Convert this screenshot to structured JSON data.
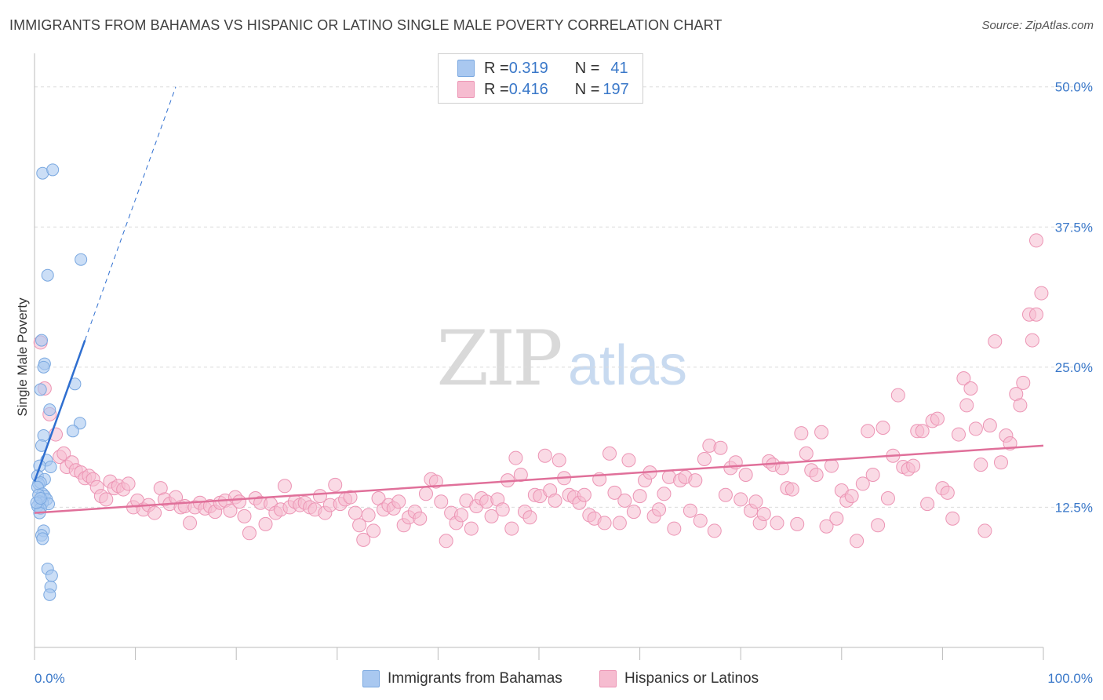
{
  "title": "IMMIGRANTS FROM BAHAMAS VS HISPANIC OR LATINO SINGLE MALE POVERTY CORRELATION CHART",
  "source": "Source: ZipAtlas.com",
  "watermark": {
    "zip": "ZIP",
    "atlas": "atlas"
  },
  "legend": {
    "rows": [
      {
        "r_label": "R = ",
        "r_value": "0.319",
        "n_label": "N = ",
        "n_value": "41"
      },
      {
        "r_label": "R = ",
        "r_value": "0.416",
        "n_label": "N = ",
        "n_value": "197"
      }
    ]
  },
  "chart_data": {
    "type": "scatter",
    "title": "IMMIGRANTS FROM BAHAMAS VS HISPANIC OR LATINO SINGLE MALE POVERTY CORRELATION CHART",
    "xlabel": "",
    "ylabel": "Single Male Poverty",
    "xlim": [
      0,
      100
    ],
    "ylim": [
      0,
      52.5
    ],
    "x_tick_labels": [
      "0.0%",
      "100.0%"
    ],
    "y_ticks": [
      12.5,
      25.0,
      37.5,
      50.0
    ],
    "y_tick_labels": [
      "12.5%",
      "25.0%",
      "37.5%",
      "50.0%"
    ],
    "grid": true,
    "legend_position": "top-center",
    "colors": {
      "blue_fill": "#a9c8f0",
      "blue_stroke": "#7aa8e0",
      "blue_line": "#2f6fd0",
      "pink_fill": "#f6bcd0",
      "pink_stroke": "#ec94b4",
      "pink_line": "#e0709a",
      "tick_text": "#3a78c9",
      "grid": "#dcdcdc"
    },
    "series": [
      {
        "name": "Immigrants from Bahamas",
        "r": 0.319,
        "n": 41,
        "trend": {
          "x": [
            0.0,
            5.0
          ],
          "y": [
            14.8,
            27.4
          ]
        },
        "trend_extended": {
          "x": [
            5.0,
            14.0
          ],
          "y": [
            27.4,
            50.0
          ]
        },
        "points": [
          [
            0.8,
            42.3
          ],
          [
            1.8,
            42.6
          ],
          [
            1.3,
            33.2
          ],
          [
            4.6,
            34.6
          ],
          [
            0.7,
            27.4
          ],
          [
            1.0,
            25.3
          ],
          [
            0.9,
            25.0
          ],
          [
            4.0,
            23.5
          ],
          [
            0.6,
            23.0
          ],
          [
            1.5,
            21.2
          ],
          [
            4.5,
            20.0
          ],
          [
            3.8,
            19.3
          ],
          [
            0.9,
            18.9
          ],
          [
            0.7,
            18.0
          ],
          [
            1.2,
            16.7
          ],
          [
            1.6,
            16.1
          ],
          [
            0.5,
            16.2
          ],
          [
            0.3,
            15.3
          ],
          [
            1.0,
            15.0
          ],
          [
            0.4,
            14.6
          ],
          [
            0.6,
            14.7
          ],
          [
            0.3,
            14.3
          ],
          [
            0.8,
            13.7
          ],
          [
            1.0,
            13.5
          ],
          [
            1.2,
            13.2
          ],
          [
            0.4,
            13.6
          ],
          [
            0.5,
            13.0
          ],
          [
            0.8,
            12.9
          ],
          [
            1.4,
            12.8
          ],
          [
            0.3,
            12.6
          ],
          [
            0.6,
            12.4
          ],
          [
            0.5,
            12.0
          ],
          [
            0.9,
            10.4
          ],
          [
            0.7,
            10.0
          ],
          [
            0.8,
            9.7
          ],
          [
            1.3,
            7.0
          ],
          [
            1.7,
            6.4
          ],
          [
            1.6,
            5.4
          ],
          [
            1.5,
            4.7
          ],
          [
            0.2,
            12.9
          ],
          [
            0.6,
            13.3
          ]
        ]
      },
      {
        "name": "Hispanics or Latinos",
        "r": 0.416,
        "n": 197,
        "trend": {
          "x": [
            0.0,
            100.0
          ],
          "y": [
            12.0,
            18.0
          ]
        },
        "points": [
          [
            0.6,
            27.2
          ],
          [
            1.0,
            23.1
          ],
          [
            1.5,
            20.8
          ],
          [
            2.1,
            19.0
          ],
          [
            2.5,
            17.0
          ],
          [
            2.9,
            17.3
          ],
          [
            3.2,
            16.1
          ],
          [
            3.7,
            16.5
          ],
          [
            4.1,
            15.8
          ],
          [
            4.6,
            15.6
          ],
          [
            5.0,
            15.1
          ],
          [
            5.4,
            15.3
          ],
          [
            5.8,
            15.0
          ],
          [
            6.2,
            14.3
          ],
          [
            6.6,
            13.5
          ],
          [
            7.1,
            13.2
          ],
          [
            7.5,
            14.8
          ],
          [
            7.9,
            14.2
          ],
          [
            8.3,
            14.4
          ],
          [
            8.8,
            14.1
          ],
          [
            9.3,
            14.6
          ],
          [
            9.8,
            12.5
          ],
          [
            10.2,
            13.1
          ],
          [
            10.8,
            12.3
          ],
          [
            11.3,
            12.7
          ],
          [
            11.9,
            12.0
          ],
          [
            12.5,
            14.2
          ],
          [
            12.9,
            13.2
          ],
          [
            13.4,
            12.8
          ],
          [
            14.0,
            13.4
          ],
          [
            14.5,
            12.5
          ],
          [
            14.9,
            12.6
          ],
          [
            15.4,
            11.1
          ],
          [
            15.9,
            12.5
          ],
          [
            16.4,
            12.9
          ],
          [
            16.9,
            12.4
          ],
          [
            17.4,
            12.6
          ],
          [
            17.9,
            12.1
          ],
          [
            18.4,
            12.9
          ],
          [
            18.9,
            13.1
          ],
          [
            19.4,
            12.2
          ],
          [
            19.9,
            13.4
          ],
          [
            20.3,
            13.0
          ],
          [
            20.8,
            11.7
          ],
          [
            21.3,
            10.2
          ],
          [
            21.9,
            13.3
          ],
          [
            22.4,
            12.9
          ],
          [
            22.9,
            11.0
          ],
          [
            23.4,
            12.8
          ],
          [
            23.9,
            12.0
          ],
          [
            24.4,
            12.3
          ],
          [
            24.8,
            14.4
          ],
          [
            25.3,
            12.5
          ],
          [
            25.8,
            13.0
          ],
          [
            26.3,
            12.7
          ],
          [
            26.8,
            12.9
          ],
          [
            27.3,
            12.5
          ],
          [
            27.8,
            12.3
          ],
          [
            28.3,
            13.5
          ],
          [
            28.8,
            12.0
          ],
          [
            29.3,
            12.7
          ],
          [
            29.8,
            14.5
          ],
          [
            30.3,
            12.8
          ],
          [
            30.8,
            13.2
          ],
          [
            31.3,
            13.4
          ],
          [
            31.8,
            12.0
          ],
          [
            32.2,
            10.9
          ],
          [
            32.6,
            9.6
          ],
          [
            33.1,
            11.8
          ],
          [
            33.6,
            10.4
          ],
          [
            34.1,
            13.3
          ],
          [
            34.6,
            12.3
          ],
          [
            35.1,
            12.7
          ],
          [
            35.6,
            12.4
          ],
          [
            36.1,
            13.0
          ],
          [
            36.6,
            10.9
          ],
          [
            37.1,
            11.6
          ],
          [
            37.7,
            12.1
          ],
          [
            38.2,
            11.5
          ],
          [
            38.8,
            13.7
          ],
          [
            39.3,
            15.0
          ],
          [
            39.8,
            14.8
          ],
          [
            40.3,
            13.0
          ],
          [
            40.8,
            9.5
          ],
          [
            41.3,
            12.0
          ],
          [
            41.8,
            11.1
          ],
          [
            42.3,
            11.8
          ],
          [
            42.8,
            13.1
          ],
          [
            43.3,
            10.6
          ],
          [
            43.8,
            12.6
          ],
          [
            44.3,
            13.3
          ],
          [
            44.8,
            13.0
          ],
          [
            45.3,
            11.7
          ],
          [
            45.9,
            13.2
          ],
          [
            46.4,
            12.3
          ],
          [
            46.9,
            14.9
          ],
          [
            47.3,
            10.6
          ],
          [
            47.7,
            16.9
          ],
          [
            48.2,
            15.4
          ],
          [
            48.6,
            12.1
          ],
          [
            49.1,
            11.6
          ],
          [
            49.6,
            13.6
          ],
          [
            50.1,
            13.5
          ],
          [
            50.6,
            17.1
          ],
          [
            51.1,
            14.0
          ],
          [
            51.6,
            13.1
          ],
          [
            52.0,
            16.7
          ],
          [
            52.5,
            15.1
          ],
          [
            53.0,
            13.6
          ],
          [
            53.5,
            13.4
          ],
          [
            54.0,
            12.9
          ],
          [
            54.5,
            13.6
          ],
          [
            55.0,
            11.8
          ],
          [
            55.5,
            11.5
          ],
          [
            56.0,
            15.0
          ],
          [
            56.5,
            11.1
          ],
          [
            57.0,
            17.3
          ],
          [
            57.5,
            13.8
          ],
          [
            58.0,
            11.1
          ],
          [
            58.5,
            13.1
          ],
          [
            58.9,
            16.7
          ],
          [
            59.4,
            12.1
          ],
          [
            60.0,
            13.5
          ],
          [
            60.5,
            14.9
          ],
          [
            61.0,
            15.6
          ],
          [
            61.4,
            11.7
          ],
          [
            61.9,
            12.3
          ],
          [
            62.4,
            13.7
          ],
          [
            62.9,
            15.2
          ],
          [
            63.4,
            10.6
          ],
          [
            64.0,
            14.9
          ],
          [
            64.5,
            15.2
          ],
          [
            65.0,
            12.2
          ],
          [
            65.5,
            14.9
          ],
          [
            66.0,
            11.3
          ],
          [
            66.4,
            16.8
          ],
          [
            66.9,
            18.0
          ],
          [
            67.4,
            10.4
          ],
          [
            68.0,
            17.8
          ],
          [
            68.5,
            13.6
          ],
          [
            69.0,
            16.0
          ],
          [
            69.5,
            16.5
          ],
          [
            70.0,
            13.2
          ],
          [
            70.5,
            15.4
          ],
          [
            71.0,
            12.2
          ],
          [
            71.5,
            13.0
          ],
          [
            71.9,
            11.1
          ],
          [
            72.3,
            11.9
          ],
          [
            72.8,
            16.6
          ],
          [
            73.2,
            16.3
          ],
          [
            73.6,
            11.1
          ],
          [
            74.1,
            16.0
          ],
          [
            74.6,
            14.2
          ],
          [
            75.1,
            14.1
          ],
          [
            75.6,
            11.0
          ],
          [
            76.0,
            19.1
          ],
          [
            76.5,
            17.3
          ],
          [
            77.0,
            15.8
          ],
          [
            77.5,
            15.4
          ],
          [
            78.0,
            19.2
          ],
          [
            78.5,
            10.8
          ],
          [
            79.0,
            16.2
          ],
          [
            79.5,
            11.5
          ],
          [
            80.0,
            14.0
          ],
          [
            80.5,
            13.1
          ],
          [
            81.0,
            13.5
          ],
          [
            81.5,
            9.5
          ],
          [
            82.1,
            14.6
          ],
          [
            82.6,
            19.3
          ],
          [
            83.1,
            15.4
          ],
          [
            83.6,
            10.9
          ],
          [
            84.1,
            19.6
          ],
          [
            84.6,
            13.3
          ],
          [
            85.1,
            17.1
          ],
          [
            85.6,
            22.5
          ],
          [
            86.1,
            16.1
          ],
          [
            86.6,
            15.9
          ],
          [
            87.1,
            16.2
          ],
          [
            87.5,
            19.3
          ],
          [
            88.0,
            19.3
          ],
          [
            88.5,
            12.8
          ],
          [
            89.0,
            20.2
          ],
          [
            89.5,
            20.4
          ],
          [
            90.0,
            14.2
          ],
          [
            90.5,
            13.8
          ],
          [
            91.0,
            11.5
          ],
          [
            91.6,
            19.0
          ],
          [
            92.1,
            24.0
          ],
          [
            92.4,
            21.6
          ],
          [
            92.8,
            23.1
          ],
          [
            93.3,
            19.5
          ],
          [
            93.8,
            16.3
          ],
          [
            94.2,
            10.4
          ],
          [
            94.7,
            19.8
          ],
          [
            95.2,
            27.3
          ],
          [
            95.8,
            16.5
          ],
          [
            96.3,
            18.9
          ],
          [
            96.7,
            18.2
          ],
          [
            97.3,
            22.6
          ],
          [
            97.7,
            21.6
          ],
          [
            98.0,
            23.6
          ],
          [
            98.6,
            29.7
          ],
          [
            98.9,
            27.4
          ],
          [
            99.3,
            29.7
          ],
          [
            99.8,
            31.6
          ],
          [
            99.3,
            36.3
          ]
        ]
      }
    ]
  },
  "bottom_legend": {
    "items": [
      "Immigrants from Bahamas",
      "Hispanics or Latinos"
    ]
  }
}
